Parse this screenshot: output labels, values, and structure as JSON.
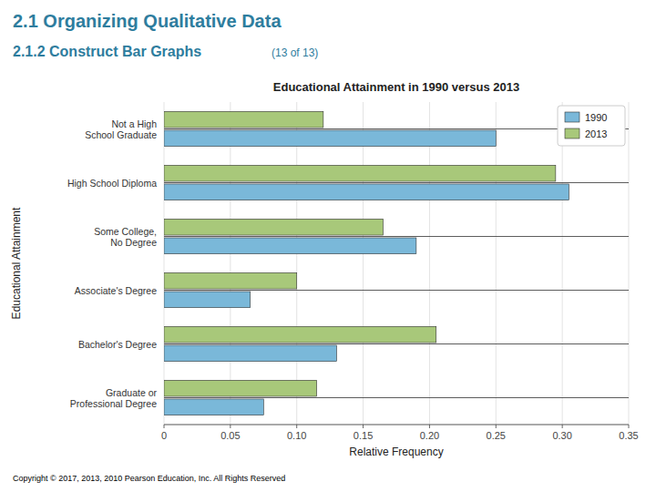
{
  "page_title": "2.1 Organizing Qualitative Data",
  "page_subtitle": "2.1.2 Construct Bar Graphs",
  "page_counter": "(13 of 13)",
  "footer": "Copyright ©  2017, 2013, 2010 Pearson Education, Inc. All Rights Reserved",
  "chart_data": {
    "type": "bar",
    "orientation": "horizontal",
    "title": "Educational Attainment in 1990 versus 2013",
    "categories": [
      "Not a High\nSchool Graduate",
      "High School Diploma",
      "Some College,\nNo Degree",
      "Associate's Degree",
      "Bachelor's Degree",
      "Graduate or\nProfessional Degree"
    ],
    "series": [
      {
        "name": "1990",
        "color": "#7ab8d9",
        "values": [
          0.25,
          0.305,
          0.19,
          0.065,
          0.13,
          0.075
        ]
      },
      {
        "name": "2013",
        "color": "#a8c87a",
        "values": [
          0.12,
          0.295,
          0.165,
          0.1,
          0.205,
          0.115
        ]
      }
    ],
    "xlabel": "Relative Frequency",
    "ylabel": "Educational Attainment",
    "xlim": [
      0,
      0.35
    ],
    "xticks": [
      0,
      0.05,
      {
        "value": 0.1,
        "label": "0.10"
      },
      0.15,
      {
        "value": 0.2,
        "label": "0.20"
      },
      0.25,
      {
        "value": 0.3,
        "label": "0.30"
      },
      0.35
    ],
    "grid": true,
    "legend": "upper right"
  }
}
